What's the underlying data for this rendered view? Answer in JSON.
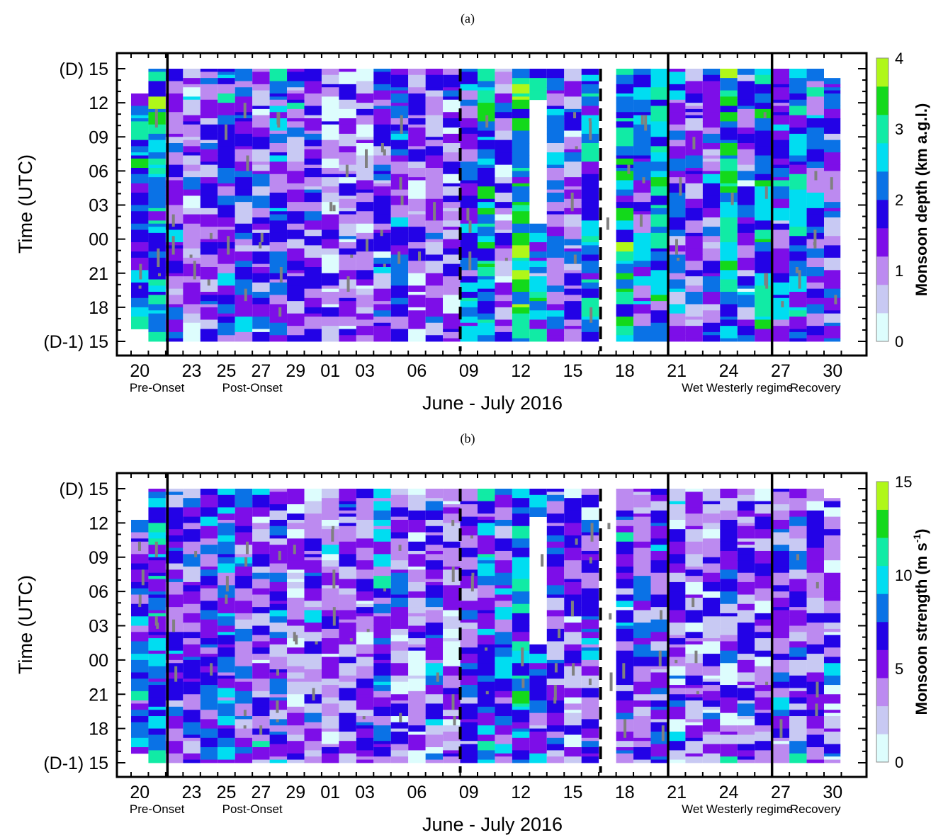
{
  "figure": {
    "panel_labels": [
      "(a)",
      "(b)"
    ]
  },
  "chart_data": [
    {
      "type": "heatmap",
      "panel": "(a)",
      "xlabel": "June - July 2016",
      "ylabel": "Time (UTC)",
      "x_ticks": [
        "20",
        "23",
        "25",
        "27",
        "29",
        "01",
        "03",
        "06",
        "09",
        "12",
        "15",
        "18",
        "21",
        "24",
        "27",
        "30"
      ],
      "y_ticks": [
        "(D-1) 15",
        "18",
        "21",
        "00",
        "03",
        "06",
        "09",
        "12",
        "(D) 15"
      ],
      "phase_labels": [
        "Pre-Onset",
        "Post-Onset",
        "Wet Westerly regime",
        "Recovery"
      ],
      "solid_lines_at": [
        "22 June",
        "21 July",
        "27 July"
      ],
      "dashed_lines_at": [
        "09 July",
        "17 July"
      ],
      "colorbar": {
        "title": "Monsoon depth (km a.g.l.)",
        "ticks": [
          "0",
          "1",
          "2",
          "3",
          "4"
        ],
        "range": [
          0,
          4
        ],
        "colors": [
          "#ddfdfd",
          "#c8c9f3",
          "#bc8af0",
          "#7d0ee8",
          "#2302e6",
          "#0a72e6",
          "#00ddf1",
          "#11eba5",
          "#13d91b",
          "#b0f719"
        ]
      },
      "days": [
        "20 Jun",
        "21 Jun",
        "22 Jun",
        "23 Jun",
        "24 Jun",
        "25 Jun",
        "26 Jun",
        "27 Jun",
        "28 Jun",
        "29 Jun",
        "30 Jun",
        "01 Jul",
        "02 Jul",
        "03 Jul",
        "04 Jul",
        "05 Jul",
        "06 Jul",
        "07 Jul",
        "08 Jul",
        "09 Jul",
        "10 Jul",
        "11 Jul",
        "12 Jul",
        "13 Jul",
        "14 Jul",
        "15 Jul",
        "16 Jul",
        "17 Jul",
        "18 Jul",
        "19 Jul",
        "20 Jul",
        "21 Jul",
        "22 Jul",
        "23 Jul",
        "24 Jul",
        "25 Jul",
        "26 Jul",
        "27 Jul",
        "28 Jul",
        "29 Jul",
        "30 Jul"
      ],
      "typical_value_per_day": [
        2.0,
        2.4,
        1.5,
        1.0,
        1.3,
        1.8,
        1.6,
        1.2,
        1.9,
        1.4,
        1.3,
        0.9,
        1.1,
        1.0,
        1.5,
        1.6,
        1.0,
        1.3,
        1.1,
        1.8,
        2.6,
        1.2,
        2.9,
        2.2,
        1.8,
        1.4,
        2.4,
        1.4,
        2.5,
        1.8,
        2.5,
        1.6,
        1.2,
        1.6,
        2.7,
        1.4,
        2.5,
        1.8,
        2.0,
        1.6,
        1.5
      ]
    },
    {
      "type": "heatmap",
      "panel": "(b)",
      "xlabel": "June - July 2016",
      "ylabel": "Time (UTC)",
      "x_ticks": [
        "20",
        "23",
        "25",
        "27",
        "29",
        "01",
        "03",
        "06",
        "09",
        "12",
        "15",
        "18",
        "21",
        "24",
        "27",
        "30"
      ],
      "y_ticks": [
        "(D-1) 15",
        "18",
        "21",
        "00",
        "03",
        "06",
        "09",
        "12",
        "(D) 15"
      ],
      "phase_labels": [
        "Pre-Onset",
        "Post-Onset",
        "Wet Westerly regime",
        "Recovery"
      ],
      "solid_lines_at": [
        "22 June",
        "21 July",
        "27 July"
      ],
      "dashed_lines_at": [
        "09 July",
        "17 July"
      ],
      "colorbar": {
        "title": "Monsoon strength (m s-1)",
        "title_base": "Monsoon strength (m s",
        "title_sup": "-1",
        "title_close": ")",
        "ticks": [
          "0",
          "5",
          "10",
          "15"
        ],
        "range": [
          0,
          15
        ],
        "colors": [
          "#ddfdfd",
          "#c8c9f3",
          "#bc8af0",
          "#7d0ee8",
          "#2302e6",
          "#0a72e6",
          "#00ddf1",
          "#11eba5",
          "#13d91b",
          "#b0f719"
        ]
      },
      "days": [
        "20 Jun",
        "21 Jun",
        "22 Jun",
        "23 Jun",
        "24 Jun",
        "25 Jun",
        "26 Jun",
        "27 Jun",
        "28 Jun",
        "29 Jun",
        "30 Jun",
        "01 Jul",
        "02 Jul",
        "03 Jul",
        "04 Jul",
        "05 Jul",
        "06 Jul",
        "07 Jul",
        "08 Jul",
        "09 Jul",
        "10 Jul",
        "11 Jul",
        "12 Jul",
        "13 Jul",
        "14 Jul",
        "15 Jul",
        "16 Jul",
        "17 Jul",
        "18 Jul",
        "19 Jul",
        "20 Jul",
        "21 Jul",
        "22 Jul",
        "23 Jul",
        "24 Jul",
        "25 Jul",
        "26 Jul",
        "27 Jul",
        "28 Jul",
        "29 Jul",
        "30 Jul"
      ],
      "typical_value_per_day": [
        6.5,
        8.0,
        5.5,
        4.5,
        5.5,
        7.0,
        6.0,
        5.0,
        5.0,
        4.0,
        4.5,
        4.0,
        5.0,
        4.0,
        6.5,
        4.5,
        4.0,
        5.0,
        4.0,
        5.0,
        7.5,
        6.5,
        9.0,
        6.5,
        5.5,
        4.0,
        6.0,
        4.0,
        6.0,
        5.0,
        5.5,
        4.5,
        4.0,
        4.0,
        4.5,
        4.5,
        4.5,
        5.0,
        5.5,
        4.5,
        4.5
      ]
    }
  ]
}
